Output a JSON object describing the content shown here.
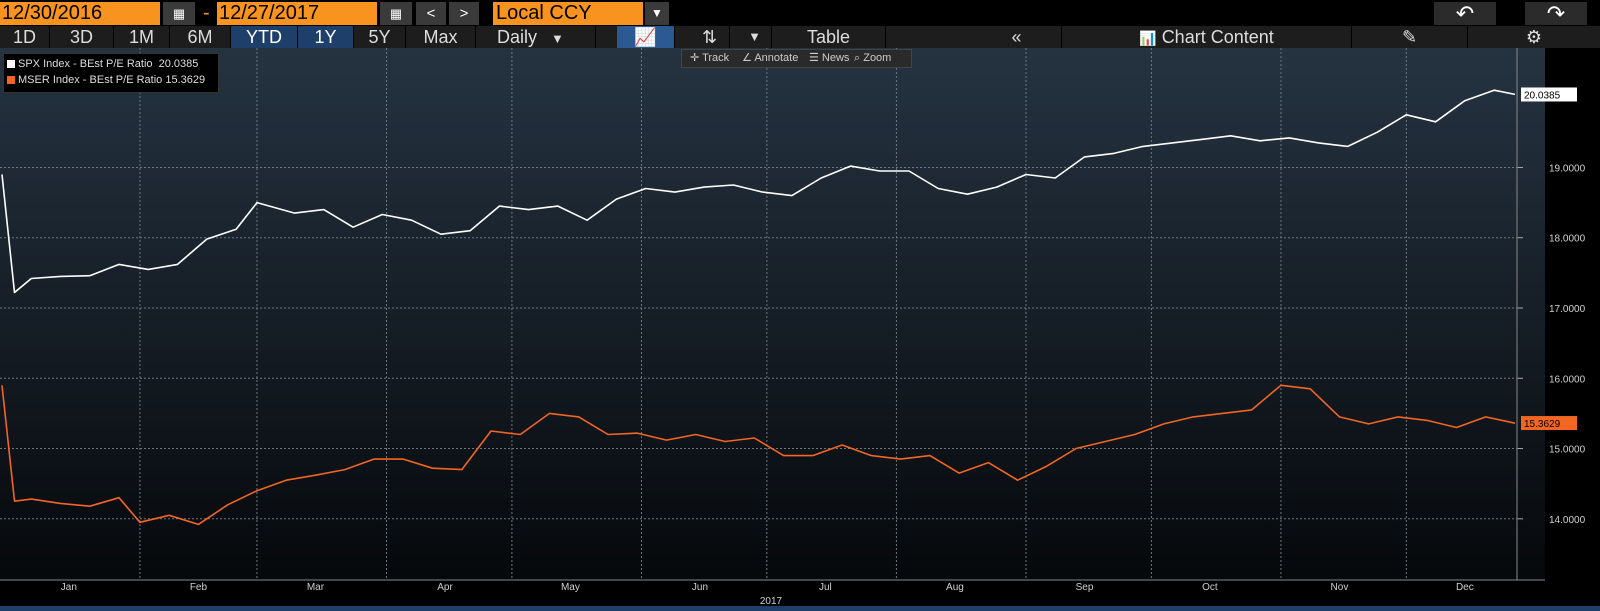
{
  "toolbar": {
    "start_date": "12/30/2016",
    "end_date": "12/27/2017",
    "date_separator": "-",
    "prev_icon": "<",
    "next_icon": ">",
    "currency": "Local CCY"
  },
  "periods": [
    "1D",
    "3D",
    "1M",
    "6M",
    "YTD",
    "1Y",
    "5Y",
    "Max"
  ],
  "active_periods": [
    "YTD",
    "1Y"
  ],
  "frequency": "Daily",
  "table_label": "Table",
  "collapse_icon": "«",
  "chart_content_label": "Chart Content",
  "subtoolbar": {
    "track": "Track",
    "annotate": "Annotate",
    "news": "News",
    "zoom": "Zoom"
  },
  "legend": [
    {
      "label": "SPX Index - BEst P/E Ratio",
      "value": "20.0385",
      "color": "#ffffff"
    },
    {
      "label": "MSER Index - BEst P/E Ratio",
      "value": "15.3629",
      "color": "#f26522"
    }
  ],
  "colors": {
    "accent": "#f7931e",
    "active_tab": "#1f3f6b",
    "series1": "#ffffff",
    "series2": "#f26522"
  },
  "chart_data": {
    "type": "line",
    "title": "",
    "xlabel": "2017",
    "x_ticks": [
      "Jan",
      "Feb",
      "Mar",
      "Apr",
      "May",
      "Jun",
      "Jul",
      "Aug",
      "Sep",
      "Oct",
      "Nov",
      "Dec"
    ],
    "y_ticks": [
      "14.0000",
      "15.0000",
      "16.0000",
      "17.0000",
      "18.0000",
      "19.0000"
    ],
    "ylim": [
      13.3,
      20.7
    ],
    "grid": true,
    "legend_position": "top-left",
    "series": [
      {
        "name": "SPX Index - BEst P/E Ratio",
        "last_value": "20.0385",
        "points": [
          [
            "12-30",
            18.9
          ],
          [
            "01-02",
            17.22
          ],
          [
            "01-06",
            17.42
          ],
          [
            "01-13",
            17.45
          ],
          [
            "01-20",
            17.46
          ],
          [
            "01-27",
            17.62
          ],
          [
            "02-03",
            17.55
          ],
          [
            "02-10",
            17.62
          ],
          [
            "02-17",
            17.98
          ],
          [
            "02-24",
            18.12
          ],
          [
            "03-01",
            18.5
          ],
          [
            "03-10",
            18.35
          ],
          [
            "03-17",
            18.4
          ],
          [
            "03-24",
            18.15
          ],
          [
            "03-31",
            18.33
          ],
          [
            "04-07",
            18.25
          ],
          [
            "04-14",
            18.05
          ],
          [
            "04-21",
            18.1
          ],
          [
            "04-28",
            18.45
          ],
          [
            "05-05",
            18.4
          ],
          [
            "05-12",
            18.45
          ],
          [
            "05-19",
            18.25
          ],
          [
            "05-26",
            18.55
          ],
          [
            "06-02",
            18.7
          ],
          [
            "06-09",
            18.65
          ],
          [
            "06-16",
            18.72
          ],
          [
            "06-23",
            18.75
          ],
          [
            "06-30",
            18.65
          ],
          [
            "07-07",
            18.6
          ],
          [
            "07-14",
            18.85
          ],
          [
            "07-21",
            19.02
          ],
          [
            "07-28",
            18.95
          ],
          [
            "08-04",
            18.95
          ],
          [
            "08-11",
            18.7
          ],
          [
            "08-18",
            18.62
          ],
          [
            "08-25",
            18.72
          ],
          [
            "09-01",
            18.9
          ],
          [
            "09-08",
            18.85
          ],
          [
            "09-15",
            19.15
          ],
          [
            "09-22",
            19.2
          ],
          [
            "09-29",
            19.3
          ],
          [
            "10-06",
            19.35
          ],
          [
            "10-13",
            19.4
          ],
          [
            "10-20",
            19.45
          ],
          [
            "10-27",
            19.38
          ],
          [
            "11-03",
            19.42
          ],
          [
            "11-10",
            19.35
          ],
          [
            "11-17",
            19.3
          ],
          [
            "11-24",
            19.5
          ],
          [
            "12-01",
            19.75
          ],
          [
            "12-08",
            19.65
          ],
          [
            "12-15",
            19.95
          ],
          [
            "12-22",
            20.1
          ],
          [
            "12-27",
            20.04
          ]
        ]
      },
      {
        "name": "MSER Index - BEst P/E Ratio",
        "last_value": "15.3629",
        "points": [
          [
            "12-30",
            15.9
          ],
          [
            "01-02",
            14.25
          ],
          [
            "01-06",
            14.28
          ],
          [
            "01-13",
            14.22
          ],
          [
            "01-20",
            14.18
          ],
          [
            "01-27",
            14.3
          ],
          [
            "02-01",
            13.95
          ],
          [
            "02-08",
            14.05
          ],
          [
            "02-15",
            13.92
          ],
          [
            "02-22",
            14.2
          ],
          [
            "03-01",
            14.4
          ],
          [
            "03-08",
            14.55
          ],
          [
            "03-15",
            14.62
          ],
          [
            "03-22",
            14.7
          ],
          [
            "03-29",
            14.85
          ],
          [
            "04-05",
            14.85
          ],
          [
            "04-12",
            14.72
          ],
          [
            "04-19",
            14.7
          ],
          [
            "04-26",
            15.25
          ],
          [
            "05-03",
            15.2
          ],
          [
            "05-10",
            15.5
          ],
          [
            "05-17",
            15.45
          ],
          [
            "05-24",
            15.2
          ],
          [
            "05-31",
            15.22
          ],
          [
            "06-07",
            15.12
          ],
          [
            "06-14",
            15.2
          ],
          [
            "06-21",
            15.1
          ],
          [
            "06-28",
            15.15
          ],
          [
            "07-05",
            14.9
          ],
          [
            "07-12",
            14.9
          ],
          [
            "07-19",
            15.05
          ],
          [
            "07-26",
            14.9
          ],
          [
            "08-02",
            14.85
          ],
          [
            "08-09",
            14.9
          ],
          [
            "08-16",
            14.65
          ],
          [
            "08-23",
            14.8
          ],
          [
            "08-30",
            14.55
          ],
          [
            "09-06",
            14.75
          ],
          [
            "09-13",
            15.0
          ],
          [
            "09-20",
            15.1
          ],
          [
            "09-27",
            15.2
          ],
          [
            "10-04",
            15.35
          ],
          [
            "10-11",
            15.45
          ],
          [
            "10-18",
            15.5
          ],
          [
            "10-25",
            15.55
          ],
          [
            "11-01",
            15.9
          ],
          [
            "11-08",
            15.85
          ],
          [
            "11-15",
            15.45
          ],
          [
            "11-22",
            15.35
          ],
          [
            "11-29",
            15.45
          ],
          [
            "12-06",
            15.4
          ],
          [
            "12-13",
            15.3
          ],
          [
            "12-20",
            15.45
          ],
          [
            "12-27",
            15.36
          ]
        ]
      }
    ]
  }
}
